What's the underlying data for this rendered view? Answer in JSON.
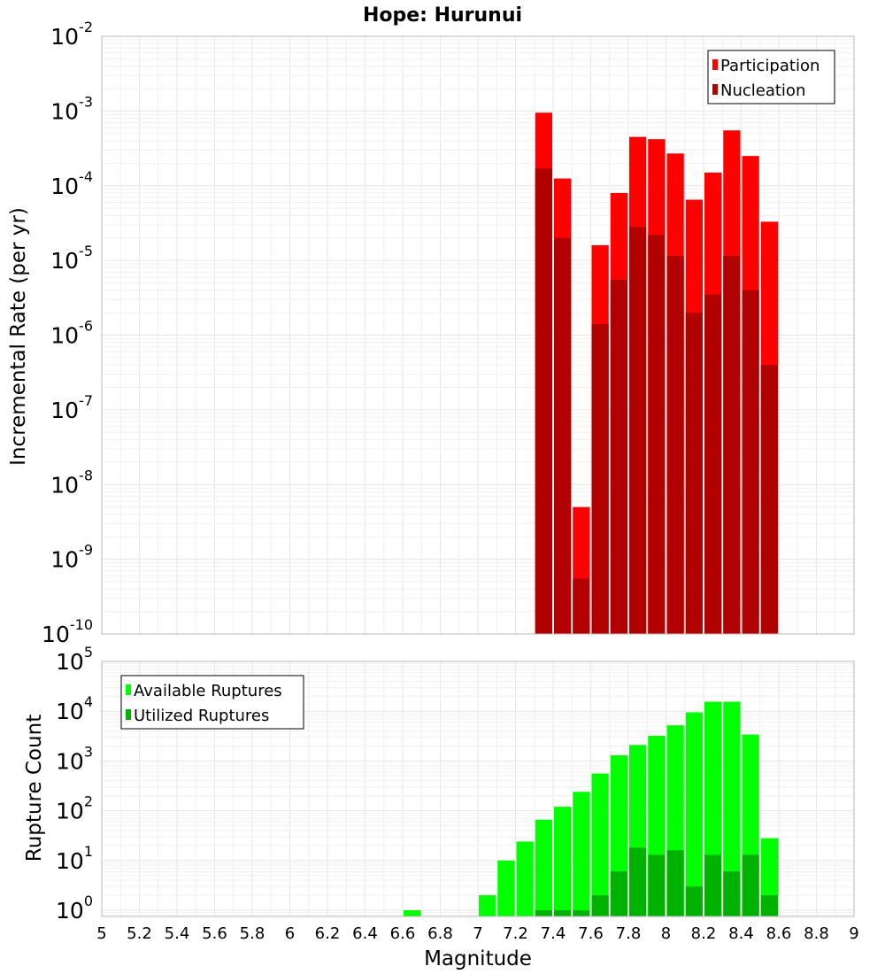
{
  "chart_data": [
    {
      "type": "bar",
      "title": "Hope: Hurunui",
      "ylabel": "Incremental Rate (per yr)",
      "xlabel": "",
      "yscale": "log",
      "xlim": [
        5,
        9
      ],
      "ylim": [
        1e-10,
        0.01
      ],
      "y_ticks": [
        {
          "base": "10",
          "exp": "-10"
        },
        {
          "base": "10",
          "exp": "-9"
        },
        {
          "base": "10",
          "exp": "-8"
        },
        {
          "base": "10",
          "exp": "-7"
        },
        {
          "base": "10",
          "exp": "-6"
        },
        {
          "base": "10",
          "exp": "-5"
        },
        {
          "base": "10",
          "exp": "-4"
        },
        {
          "base": "10",
          "exp": "-3"
        },
        {
          "base": "10",
          "exp": "-2"
        }
      ],
      "x": [
        7.35,
        7.45,
        7.55,
        7.65,
        7.75,
        7.85,
        7.95,
        8.05,
        8.15,
        8.25,
        8.35,
        8.45,
        8.55
      ],
      "series": [
        {
          "name": "Participation",
          "color": "#ff0000",
          "values": [
            0.00095,
            0.000125,
            5e-09,
            1.6e-05,
            8e-05,
            0.00045,
            0.00042,
            0.00027,
            6.5e-05,
            0.00015,
            0.00055,
            0.00025,
            3.3e-05
          ]
        },
        {
          "name": "Nucleation",
          "color": "#b20000",
          "values": [
            0.00017,
            2e-05,
            5.5e-10,
            1.4e-06,
            5.5e-06,
            2.8e-05,
            2.2e-05,
            1.15e-05,
            2e-06,
            3.5e-06,
            1.15e-05,
            4e-06,
            4e-07
          ]
        }
      ],
      "legend": {
        "position": "top-right",
        "entries": [
          "Participation",
          "Nucleation"
        ]
      },
      "grid": true
    },
    {
      "type": "bar",
      "title": "",
      "ylabel": "Rupture Count",
      "xlabel": "Magnitude",
      "yscale": "log",
      "xlim": [
        5,
        9
      ],
      "ylim": [
        0.75,
        100000
      ],
      "x_ticks": [
        "5",
        "5.2",
        "5.4",
        "5.6",
        "5.8",
        "6",
        "6.2",
        "6.4",
        "6.6",
        "6.8",
        "7",
        "7.2",
        "7.4",
        "7.6",
        "7.8",
        "8",
        "8.2",
        "8.4",
        "8.6",
        "8.8",
        "9"
      ],
      "y_ticks": [
        {
          "base": "10",
          "exp": "0"
        },
        {
          "base": "10",
          "exp": "1"
        },
        {
          "base": "10",
          "exp": "2"
        },
        {
          "base": "10",
          "exp": "3"
        },
        {
          "base": "10",
          "exp": "4"
        },
        {
          "base": "10",
          "exp": "5"
        }
      ],
      "x": [
        6.65,
        7.05,
        7.15,
        7.25,
        7.35,
        7.45,
        7.55,
        7.65,
        7.75,
        7.85,
        7.95,
        8.05,
        8.15,
        8.25,
        8.35,
        8.45,
        8.55
      ],
      "series": [
        {
          "name": "Available Ruptures",
          "color": "#00ff00",
          "values": [
            1,
            2,
            10,
            24,
            66,
            120,
            240,
            560,
            1300,
            2100,
            3200,
            5200,
            9500,
            15500,
            15500,
            3400,
            28
          ]
        },
        {
          "name": "Utilized Ruptures",
          "color": "#00b200",
          "values": [
            0,
            0,
            0,
            0,
            1,
            1,
            1,
            2,
            6,
            18,
            13,
            16,
            3,
            13,
            6,
            13,
            2
          ]
        }
      ],
      "legend": {
        "position": "top-left",
        "entries": [
          "Available Ruptures",
          "Utilized Ruptures"
        ]
      },
      "grid": true
    }
  ]
}
